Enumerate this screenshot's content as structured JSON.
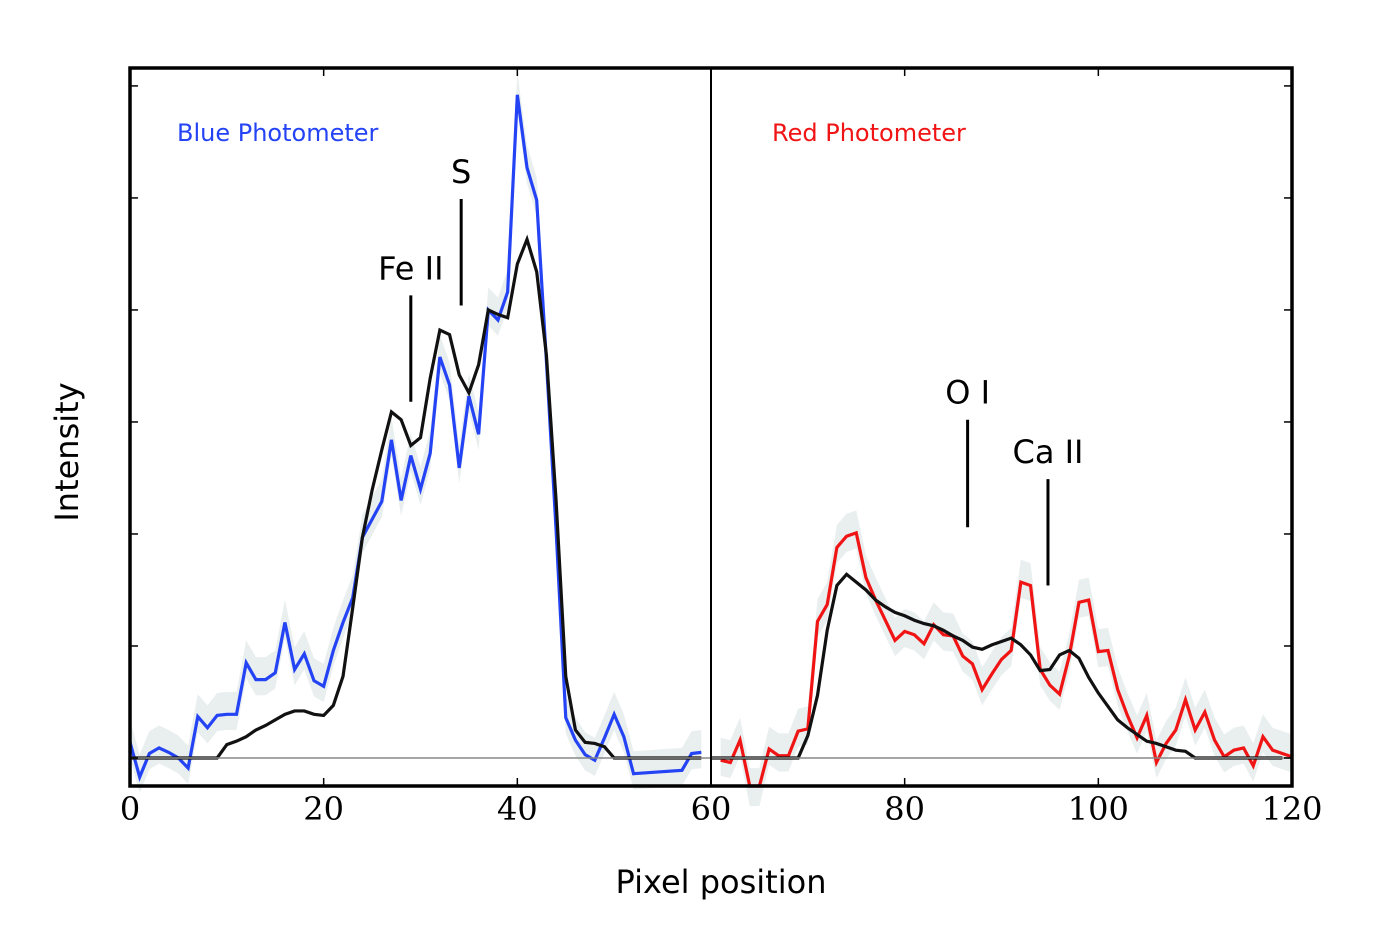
{
  "chart_data": {
    "type": "line",
    "title": "",
    "xlabel": "Pixel position",
    "ylabel": "Intensity",
    "xlim": [
      0,
      120
    ],
    "ylim": [
      -0.25,
      6.16
    ],
    "xticks": [
      0,
      20,
      40,
      60,
      80,
      100,
      120
    ],
    "yticks": [
      0,
      1,
      2,
      3,
      4,
      5,
      6
    ],
    "ytick_labels_shown": false,
    "grid": false,
    "divider_x": 60,
    "band_halfwidth": 0.2,
    "colors": {
      "blue": "#2343f5",
      "red": "#f01414",
      "model": "#111111",
      "band": "#e9eeee"
    },
    "panels": [
      {
        "label": "Blue Photometer",
        "color": "#2343f5"
      },
      {
        "label": "Red Photometer",
        "color": "#f01414"
      }
    ],
    "series": [
      {
        "name": "Blue Photometer",
        "color": "#2343f5",
        "band": true,
        "x": [
          0,
          1,
          2,
          3,
          4,
          5,
          6,
          7,
          8,
          9,
          10,
          11,
          12,
          13,
          14,
          15,
          16,
          17,
          18,
          19,
          20,
          21,
          22,
          23,
          24,
          25,
          26,
          27,
          28,
          29,
          30,
          31,
          32,
          33,
          34,
          35,
          36,
          37,
          38,
          39,
          40,
          41,
          42,
          43,
          44,
          45,
          46,
          47,
          48,
          49,
          50,
          51,
          52,
          57,
          58,
          59
        ],
        "y": [
          0.14,
          -0.17,
          0.04,
          0.09,
          0.05,
          0.0,
          -0.09,
          0.37,
          0.27,
          0.38,
          0.39,
          0.39,
          0.85,
          0.7,
          0.7,
          0.76,
          1.21,
          0.79,
          0.93,
          0.69,
          0.64,
          0.96,
          1.21,
          1.43,
          1.97,
          2.13,
          2.29,
          2.84,
          2.3,
          2.7,
          2.4,
          2.72,
          3.58,
          3.33,
          2.59,
          3.23,
          2.89,
          4.0,
          3.91,
          4.16,
          5.92,
          5.27,
          4.98,
          3.55,
          2.04,
          0.36,
          0.16,
          0.03,
          -0.02,
          0.18,
          0.39,
          0.19,
          -0.14,
          -0.11,
          0.04,
          0.05
        ]
      },
      {
        "name": "",
        "color": "#111111",
        "band": false,
        "x": [
          0,
          9,
          10,
          11,
          12,
          13,
          14,
          15,
          16,
          17,
          18,
          19,
          20,
          21,
          22,
          23,
          24,
          25,
          26,
          27,
          28,
          29,
          30,
          31,
          32,
          33,
          34,
          35,
          36,
          37,
          38,
          39,
          40,
          41,
          42,
          43,
          44,
          45,
          46,
          47,
          48,
          49,
          50,
          59
        ],
        "y": [
          0,
          0,
          0.12,
          0.15,
          0.19,
          0.25,
          0.29,
          0.34,
          0.39,
          0.42,
          0.42,
          0.39,
          0.38,
          0.47,
          0.73,
          1.34,
          1.97,
          2.39,
          2.75,
          3.09,
          3.02,
          2.79,
          2.86,
          3.39,
          3.82,
          3.78,
          3.42,
          3.26,
          3.51,
          4.0,
          3.96,
          3.93,
          4.41,
          4.63,
          4.34,
          3.6,
          2.3,
          0.73,
          0.25,
          0.14,
          0.13,
          0.1,
          0,
          0
        ]
      },
      {
        "name": "Red Photometer",
        "color": "#f01414",
        "band": true,
        "x": [
          61,
          62,
          63,
          64,
          65,
          66,
          67,
          68,
          69,
          70,
          71,
          72,
          73,
          74,
          75,
          76,
          77,
          78,
          79,
          80,
          81,
          82,
          83,
          84,
          85,
          86,
          87,
          88,
          89,
          90,
          91,
          92,
          93,
          94,
          95,
          96,
          97,
          98,
          99,
          100,
          101,
          102,
          103,
          104,
          105,
          106,
          107,
          108,
          109,
          110,
          111,
          112,
          113,
          114,
          115,
          116,
          117,
          118,
          119,
          120
        ],
        "y": [
          -0.02,
          -0.04,
          0.16,
          -0.29,
          -0.29,
          0.08,
          0.02,
          0.02,
          0.24,
          0.26,
          1.22,
          1.37,
          1.88,
          1.98,
          2.01,
          1.61,
          1.41,
          1.23,
          1.05,
          1.13,
          1.1,
          1.02,
          1.19,
          1.1,
          1.09,
          0.91,
          0.84,
          0.61,
          0.75,
          0.88,
          0.96,
          1.57,
          1.54,
          0.79,
          0.65,
          0.57,
          0.91,
          1.39,
          1.41,
          0.95,
          0.96,
          0.61,
          0.38,
          0.18,
          0.38,
          -0.04,
          0.13,
          0.25,
          0.52,
          0.25,
          0.41,
          0.16,
          0.01,
          0.07,
          0.09,
          -0.07,
          0.19,
          0.07,
          0.04,
          0.01
        ]
      },
      {
        "name": "",
        "color": "#111111",
        "band": false,
        "x": [
          60,
          69,
          70,
          71,
          72,
          73,
          74,
          75,
          76,
          77,
          78,
          79,
          80,
          81,
          82,
          83,
          84,
          85,
          86,
          87,
          88,
          89,
          90,
          91,
          92,
          93,
          94,
          95,
          96,
          97,
          98,
          99,
          100,
          101,
          102,
          103,
          104,
          105,
          106,
          107,
          108,
          109,
          110,
          119
        ],
        "y": [
          0,
          0,
          0.2,
          0.56,
          1.14,
          1.54,
          1.64,
          1.57,
          1.5,
          1.41,
          1.35,
          1.3,
          1.27,
          1.23,
          1.2,
          1.18,
          1.14,
          1.09,
          1.05,
          0.99,
          0.97,
          1.01,
          1.04,
          1.07,
          1.01,
          0.92,
          0.78,
          0.79,
          0.92,
          0.96,
          0.89,
          0.72,
          0.58,
          0.46,
          0.34,
          0.27,
          0.21,
          0.15,
          0.13,
          0.1,
          0.07,
          0.06,
          0,
          0
        ]
      }
    ],
    "annotations": [
      {
        "text": "Fe II",
        "x": 29,
        "y_top": 4.13,
        "y_bottom": 3.18
      },
      {
        "text": "S",
        "x": 34.2,
        "y_top": 4.99,
        "y_bottom": 4.04
      },
      {
        "text": "O I",
        "x": 86.5,
        "y_top": 3.02,
        "y_bottom": 2.06
      },
      {
        "text": "Ca II",
        "x": 94.8,
        "y_top": 2.49,
        "y_bottom": 1.54
      }
    ]
  }
}
